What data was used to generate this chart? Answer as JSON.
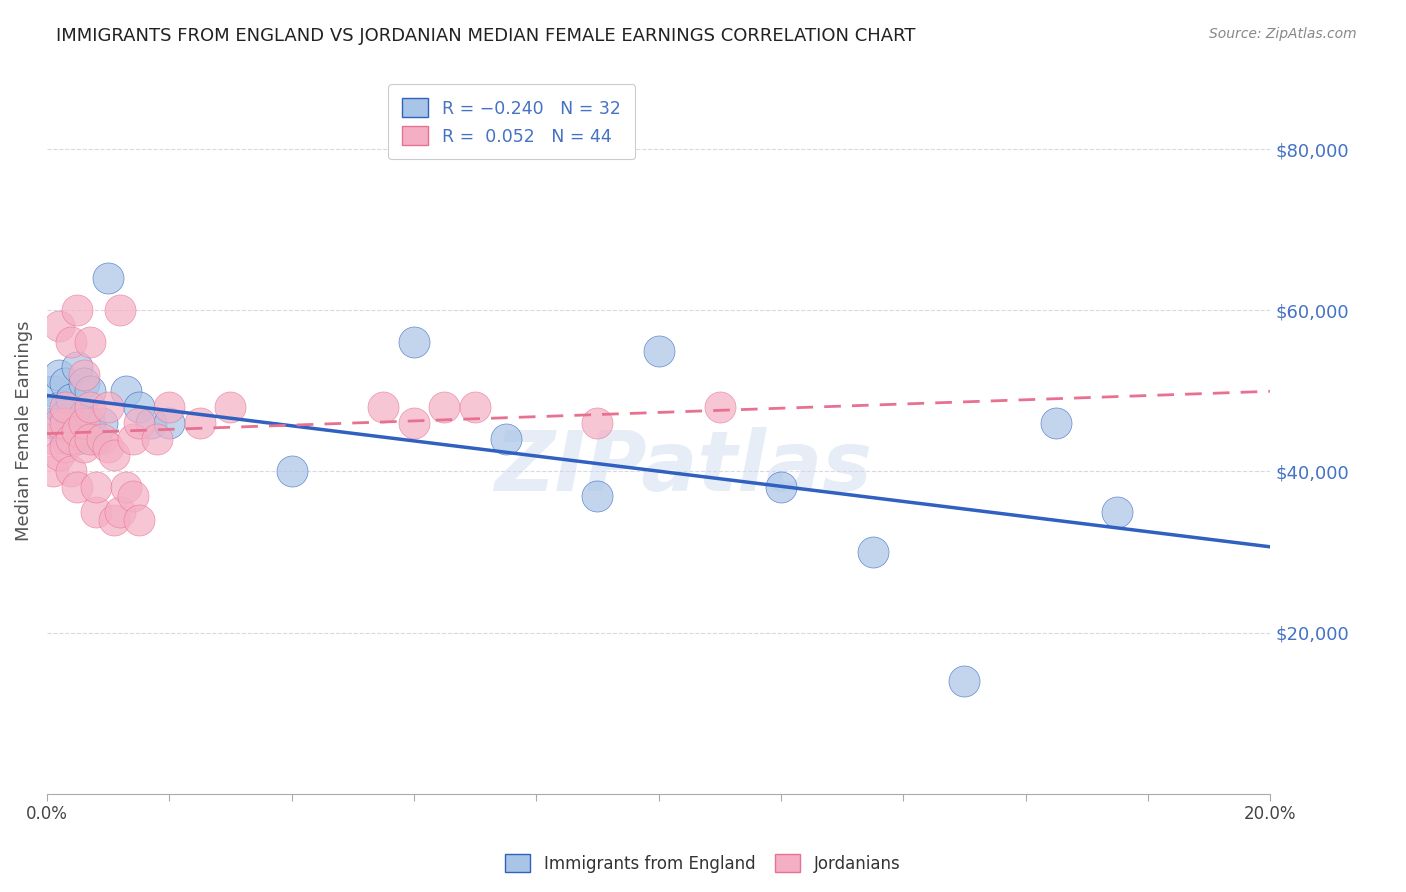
{
  "title": "IMMIGRANTS FROM ENGLAND VS JORDANIAN MEDIAN FEMALE EARNINGS CORRELATION CHART",
  "source": "Source: ZipAtlas.com",
  "ylabel": "Median Female Earnings",
  "xlim": [
    0.0,
    0.2
  ],
  "ylim": [
    0,
    90000
  ],
  "yticks": [
    0,
    20000,
    40000,
    60000,
    80000
  ],
  "ytick_labels": [
    "",
    "$20,000",
    "$40,000",
    "$60,000",
    "$80,000"
  ],
  "xtick_positions": [
    0.0,
    0.02,
    0.04,
    0.06,
    0.08,
    0.1,
    0.12,
    0.14,
    0.16,
    0.18,
    0.2
  ],
  "xtick_labels": [
    "0.0%",
    "",
    "",
    "",
    "",
    "",
    "",
    "",
    "",
    "",
    "20.0%"
  ],
  "color_england": "#a8c4e6",
  "color_jordan": "#f4afc4",
  "color_england_line": "#3060c0",
  "color_jordan_line": "#e87090",
  "watermark": "ZIPatlas",
  "background_color": "#ffffff",
  "grid_color": "#d8d8e8",
  "title_color": "#222222",
  "tick_label_color_right": "#4472c4",
  "watermark_color": "#c8d8ee",
  "england_x": [
    0.001,
    0.001,
    0.002,
    0.002,
    0.003,
    0.003,
    0.003,
    0.004,
    0.004,
    0.005,
    0.005,
    0.006,
    0.006,
    0.007,
    0.007,
    0.008,
    0.009,
    0.01,
    0.013,
    0.015,
    0.017,
    0.02,
    0.04,
    0.06,
    0.075,
    0.09,
    0.1,
    0.12,
    0.135,
    0.15,
    0.165,
    0.175
  ],
  "england_y": [
    46000,
    50000,
    48000,
    52000,
    44000,
    47000,
    51000,
    46000,
    49000,
    44000,
    53000,
    47000,
    51000,
    46000,
    50000,
    44000,
    46000,
    64000,
    50000,
    48000,
    46000,
    46000,
    40000,
    56000,
    44000,
    37000,
    55000,
    38000,
    30000,
    14000,
    46000,
    35000
  ],
  "jordan_x": [
    0.001,
    0.001,
    0.002,
    0.002,
    0.002,
    0.003,
    0.003,
    0.003,
    0.004,
    0.004,
    0.004,
    0.005,
    0.005,
    0.005,
    0.006,
    0.006,
    0.006,
    0.007,
    0.007,
    0.007,
    0.008,
    0.008,
    0.009,
    0.01,
    0.01,
    0.011,
    0.011,
    0.012,
    0.012,
    0.013,
    0.014,
    0.014,
    0.015,
    0.015,
    0.018,
    0.02,
    0.025,
    0.03,
    0.055,
    0.06,
    0.065,
    0.07,
    0.09,
    0.11
  ],
  "jordan_y": [
    44000,
    40000,
    42000,
    46000,
    58000,
    43000,
    46000,
    48000,
    40000,
    44000,
    56000,
    38000,
    45000,
    60000,
    43000,
    46000,
    52000,
    44000,
    48000,
    56000,
    35000,
    38000,
    44000,
    43000,
    48000,
    34000,
    42000,
    35000,
    60000,
    38000,
    37000,
    44000,
    34000,
    46000,
    44000,
    48000,
    46000,
    48000,
    48000,
    46000,
    48000,
    48000,
    46000,
    48000
  ]
}
